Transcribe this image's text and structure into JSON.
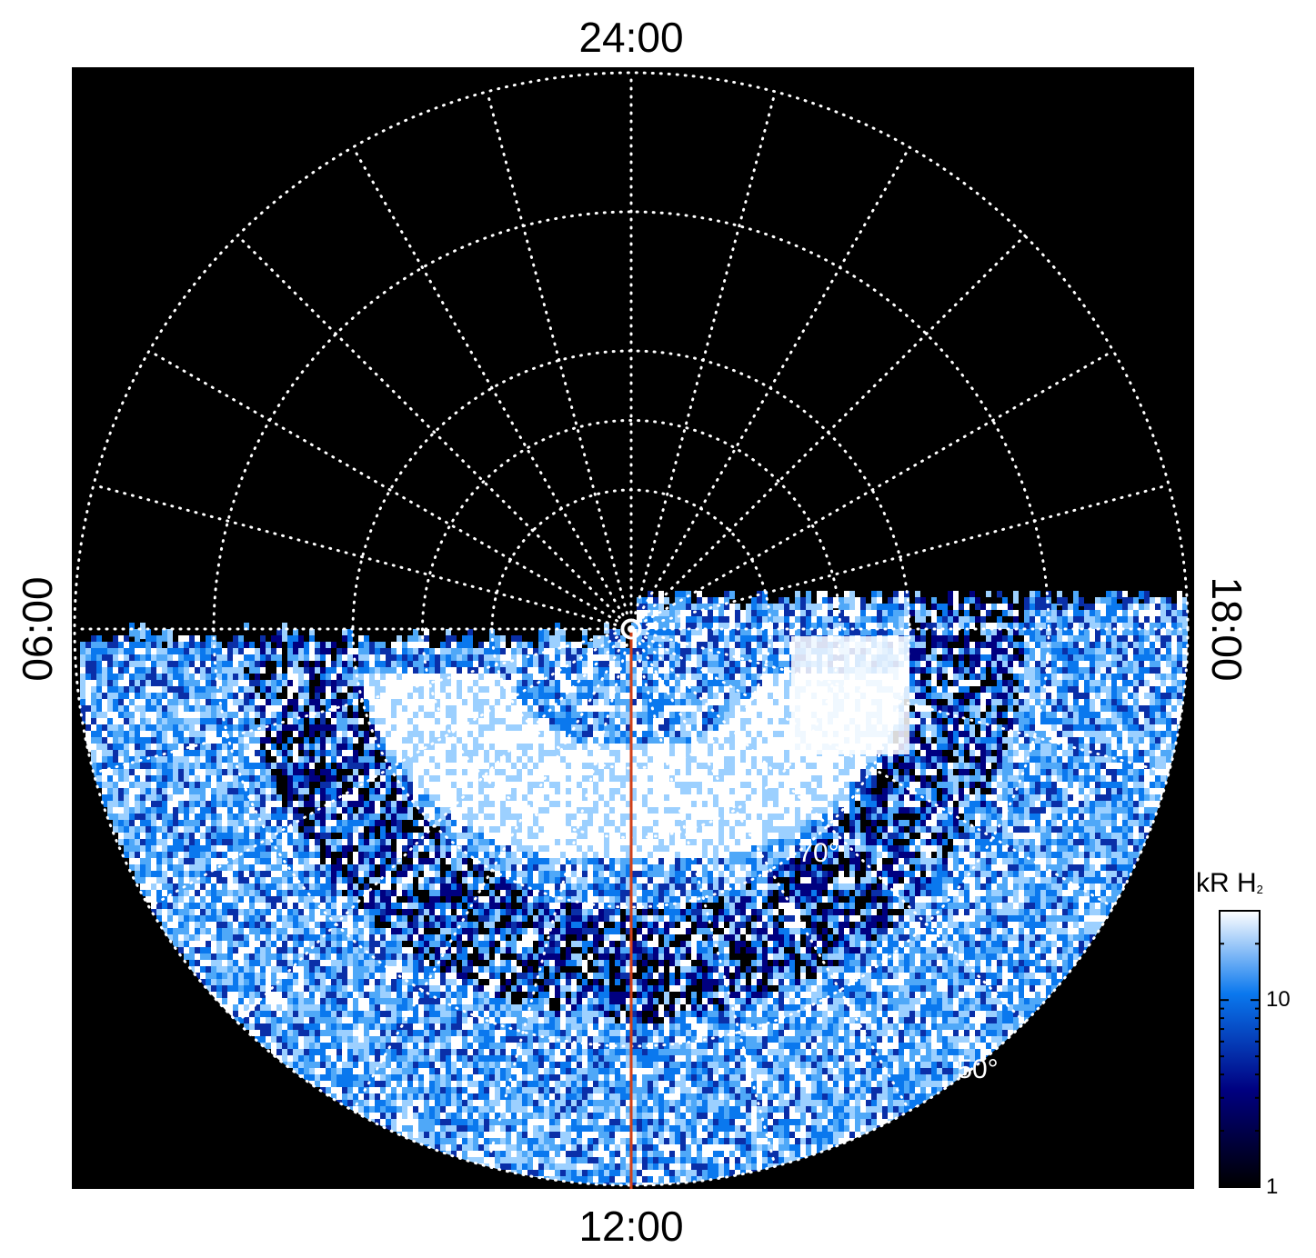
{
  "chart_data": {
    "type": "heatmap",
    "projection": "polar",
    "title": "",
    "local_time_labels": {
      "top": "24:00",
      "bottom": "12:00",
      "left": "06:00",
      "right": "18:00"
    },
    "latitude_labels": [
      "70°",
      "50°"
    ],
    "grid": true,
    "grid_style": "dotted",
    "meridian_count": 24,
    "parallel_step_deg": 10,
    "colorbar": {
      "label_main": "kR H",
      "label_sub": "2",
      "scale": "log",
      "range": [
        1,
        30
      ],
      "tick_labels": [
        "10",
        "1"
      ],
      "tick_values": [
        10,
        1
      ],
      "colors": [
        "#000000",
        "#000080",
        "#0a78ee",
        "#ffffff"
      ],
      "placement": "right"
    },
    "coverage": "dayside hemisphere (06:00 through 12:00 to 18:00)",
    "features": {
      "main_emission_band_colatitude_deg": 12,
      "reference_meridian_local_time": "12:00",
      "reference_meridian_color": "#d04018"
    }
  }
}
